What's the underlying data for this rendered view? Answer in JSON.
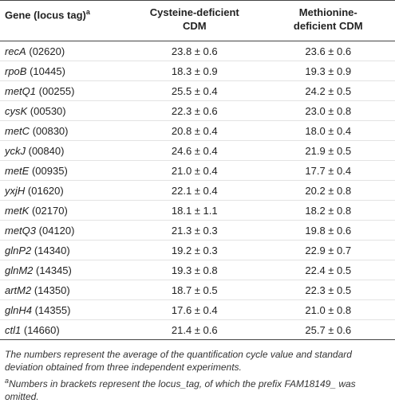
{
  "table": {
    "header": {
      "gene": "Gene (locus tag)",
      "gene_note": "a",
      "cys": "Cysteine-deficient CDM",
      "met": "Methionine-deficient CDM"
    },
    "rows": [
      [
        "recA",
        "(02620)",
        "23.8 ± 0.6",
        "23.6 ± 0.6"
      ],
      [
        "rpoB",
        "(10445)",
        "18.3 ± 0.9",
        "19.3 ± 0.9"
      ],
      [
        "metQ1",
        "(00255)",
        "25.5 ± 0.4",
        "24.2 ± 0.5"
      ],
      [
        "cysK",
        "(00530)",
        "22.3 ± 0.6",
        "23.0 ± 0.8"
      ],
      [
        "metC",
        "(00830)",
        "20.8 ± 0.4",
        "18.0 ± 0.4"
      ],
      [
        "yckJ",
        "(00840)",
        "24.6 ± 0.4",
        "21.9 ± 0.5"
      ],
      [
        "metE",
        "(00935)",
        "21.0 ± 0.4",
        "17.7 ± 0.4"
      ],
      [
        "yxjH",
        "(01620)",
        "22.1 ± 0.4",
        "20.2 ± 0.8"
      ],
      [
        "metK",
        "(02170)",
        "18.1 ± 1.1",
        "18.2 ± 0.8"
      ],
      [
        "metQ3",
        "(04120)",
        "21.3 ± 0.3",
        "19.8 ± 0.6"
      ],
      [
        "glnP2",
        "(14340)",
        "19.2 ± 0.3",
        "22.9 ± 0.7"
      ],
      [
        "glnM2",
        "(14345)",
        "19.3 ± 0.8",
        "22.4 ± 0.5"
      ],
      [
        "artM2",
        "(14350)",
        "18.7 ± 0.5",
        "22.3 ± 0.5"
      ],
      [
        "glnH4",
        "(14355)",
        "17.6 ± 0.4",
        "21.0 ± 0.8"
      ],
      [
        "ctl1",
        "(14660)",
        "21.4 ± 0.6",
        "25.7 ± 0.6"
      ]
    ]
  },
  "footnotes": {
    "note1": "The numbers represent the average of the quantification cycle value and standard deviation obtained from three independent experiments.",
    "note2_mark": "a",
    "note2": "Numbers in brackets represent the locus_tag, of which the prefix FAM18149_ was omitted."
  }
}
